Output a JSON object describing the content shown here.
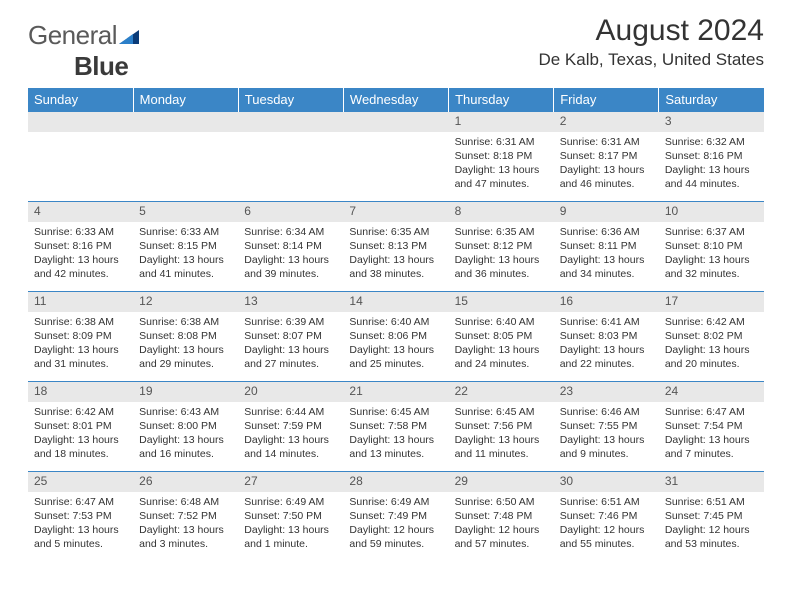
{
  "logo": {
    "word1": "General",
    "word2": "Blue"
  },
  "title": "August 2024",
  "location": "De Kalb, Texas, United States",
  "colors": {
    "header_bg": "#3b86c6",
    "header_text": "#ffffff",
    "daynum_bg": "#e8e8e8",
    "text": "#333333",
    "logo_tri1": "#0b3b78",
    "logo_tri2": "#2b7fc9"
  },
  "dayNames": [
    "Sunday",
    "Monday",
    "Tuesday",
    "Wednesday",
    "Thursday",
    "Friday",
    "Saturday"
  ],
  "weeks": [
    [
      null,
      null,
      null,
      null,
      {
        "n": "1",
        "sunrise": "6:31 AM",
        "sunset": "8:18 PM",
        "daylight": "13 hours and 47 minutes."
      },
      {
        "n": "2",
        "sunrise": "6:31 AM",
        "sunset": "8:17 PM",
        "daylight": "13 hours and 46 minutes."
      },
      {
        "n": "3",
        "sunrise": "6:32 AM",
        "sunset": "8:16 PM",
        "daylight": "13 hours and 44 minutes."
      }
    ],
    [
      {
        "n": "4",
        "sunrise": "6:33 AM",
        "sunset": "8:16 PM",
        "daylight": "13 hours and 42 minutes."
      },
      {
        "n": "5",
        "sunrise": "6:33 AM",
        "sunset": "8:15 PM",
        "daylight": "13 hours and 41 minutes."
      },
      {
        "n": "6",
        "sunrise": "6:34 AM",
        "sunset": "8:14 PM",
        "daylight": "13 hours and 39 minutes."
      },
      {
        "n": "7",
        "sunrise": "6:35 AM",
        "sunset": "8:13 PM",
        "daylight": "13 hours and 38 minutes."
      },
      {
        "n": "8",
        "sunrise": "6:35 AM",
        "sunset": "8:12 PM",
        "daylight": "13 hours and 36 minutes."
      },
      {
        "n": "9",
        "sunrise": "6:36 AM",
        "sunset": "8:11 PM",
        "daylight": "13 hours and 34 minutes."
      },
      {
        "n": "10",
        "sunrise": "6:37 AM",
        "sunset": "8:10 PM",
        "daylight": "13 hours and 32 minutes."
      }
    ],
    [
      {
        "n": "11",
        "sunrise": "6:38 AM",
        "sunset": "8:09 PM",
        "daylight": "13 hours and 31 minutes."
      },
      {
        "n": "12",
        "sunrise": "6:38 AM",
        "sunset": "8:08 PM",
        "daylight": "13 hours and 29 minutes."
      },
      {
        "n": "13",
        "sunrise": "6:39 AM",
        "sunset": "8:07 PM",
        "daylight": "13 hours and 27 minutes."
      },
      {
        "n": "14",
        "sunrise": "6:40 AM",
        "sunset": "8:06 PM",
        "daylight": "13 hours and 25 minutes."
      },
      {
        "n": "15",
        "sunrise": "6:40 AM",
        "sunset": "8:05 PM",
        "daylight": "13 hours and 24 minutes."
      },
      {
        "n": "16",
        "sunrise": "6:41 AM",
        "sunset": "8:03 PM",
        "daylight": "13 hours and 22 minutes."
      },
      {
        "n": "17",
        "sunrise": "6:42 AM",
        "sunset": "8:02 PM",
        "daylight": "13 hours and 20 minutes."
      }
    ],
    [
      {
        "n": "18",
        "sunrise": "6:42 AM",
        "sunset": "8:01 PM",
        "daylight": "13 hours and 18 minutes."
      },
      {
        "n": "19",
        "sunrise": "6:43 AM",
        "sunset": "8:00 PM",
        "daylight": "13 hours and 16 minutes."
      },
      {
        "n": "20",
        "sunrise": "6:44 AM",
        "sunset": "7:59 PM",
        "daylight": "13 hours and 14 minutes."
      },
      {
        "n": "21",
        "sunrise": "6:45 AM",
        "sunset": "7:58 PM",
        "daylight": "13 hours and 13 minutes."
      },
      {
        "n": "22",
        "sunrise": "6:45 AM",
        "sunset": "7:56 PM",
        "daylight": "13 hours and 11 minutes."
      },
      {
        "n": "23",
        "sunrise": "6:46 AM",
        "sunset": "7:55 PM",
        "daylight": "13 hours and 9 minutes."
      },
      {
        "n": "24",
        "sunrise": "6:47 AM",
        "sunset": "7:54 PM",
        "daylight": "13 hours and 7 minutes."
      }
    ],
    [
      {
        "n": "25",
        "sunrise": "6:47 AM",
        "sunset": "7:53 PM",
        "daylight": "13 hours and 5 minutes."
      },
      {
        "n": "26",
        "sunrise": "6:48 AM",
        "sunset": "7:52 PM",
        "daylight": "13 hours and 3 minutes."
      },
      {
        "n": "27",
        "sunrise": "6:49 AM",
        "sunset": "7:50 PM",
        "daylight": "13 hours and 1 minute."
      },
      {
        "n": "28",
        "sunrise": "6:49 AM",
        "sunset": "7:49 PM",
        "daylight": "12 hours and 59 minutes."
      },
      {
        "n": "29",
        "sunrise": "6:50 AM",
        "sunset": "7:48 PM",
        "daylight": "12 hours and 57 minutes."
      },
      {
        "n": "30",
        "sunrise": "6:51 AM",
        "sunset": "7:46 PM",
        "daylight": "12 hours and 55 minutes."
      },
      {
        "n": "31",
        "sunrise": "6:51 AM",
        "sunset": "7:45 PM",
        "daylight": "12 hours and 53 minutes."
      }
    ]
  ],
  "labels": {
    "sunrise": "Sunrise:",
    "sunset": "Sunset:",
    "daylight": "Daylight:"
  }
}
